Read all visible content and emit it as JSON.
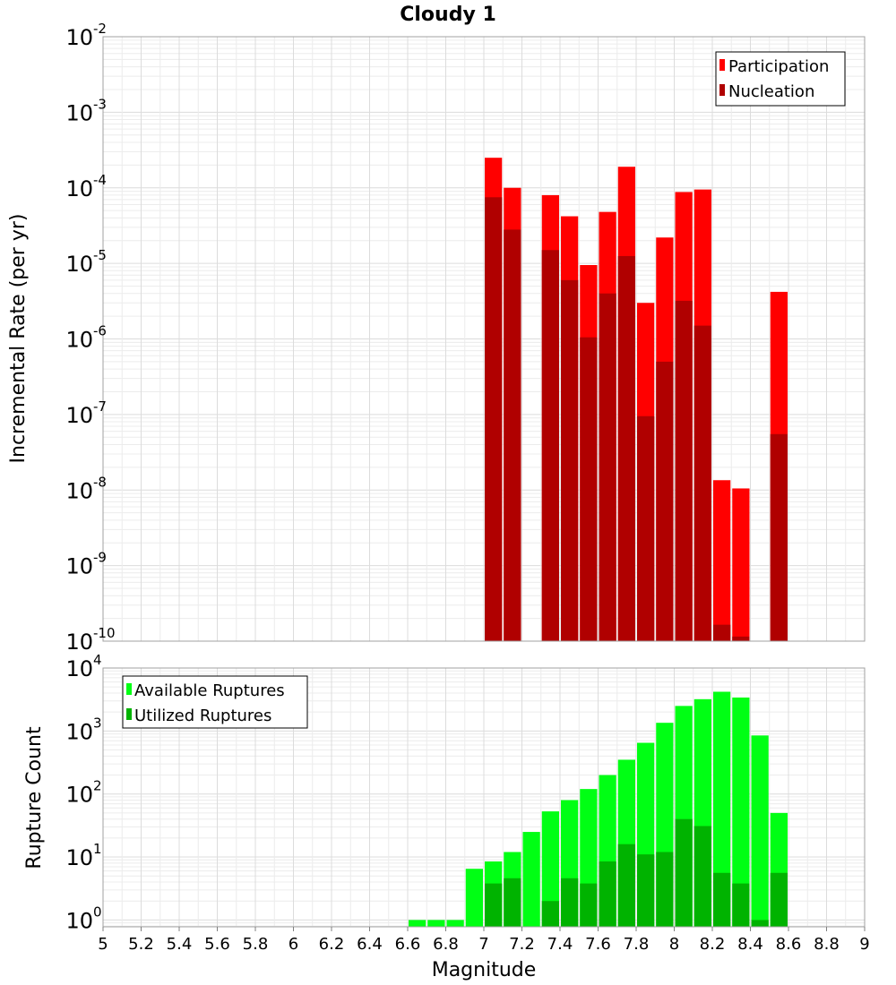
{
  "chart_data": [
    {
      "type": "bar",
      "title": "Cloudy 1",
      "xlabel": "",
      "ylabel": "Incremental Rate (per yr)",
      "yscale": "log",
      "ylim": [
        1e-10,
        0.01
      ],
      "xlim": [
        5,
        9
      ],
      "grid": true,
      "legend_position": "top-right",
      "x": [
        7.05,
        7.15,
        7.35,
        7.45,
        7.55,
        7.65,
        7.75,
        7.85,
        7.95,
        8.05,
        8.15,
        8.25,
        8.35,
        8.55
      ],
      "series": [
        {
          "name": "Participation",
          "color": "#ff0000",
          "values": [
            0.00025,
            0.0001,
            8e-05,
            4.2e-05,
            9.5e-06,
            4.8e-05,
            0.00019,
            3e-06,
            2.2e-05,
            8.8e-05,
            9.5e-05,
            1.35e-08,
            1.05e-08,
            4.2e-06
          ]
        },
        {
          "name": "Nucleation",
          "color": "#b00000",
          "values": [
            7.5e-05,
            2.8e-05,
            1.5e-05,
            6e-06,
            1.05e-06,
            4e-06,
            1.25e-05,
            9.5e-08,
            5e-07,
            3.2e-06,
            1.5e-06,
            1.65e-10,
            1.15e-10,
            5.5e-08
          ]
        }
      ],
      "ytick_labels": [
        {
          "base": "10",
          "exp": "-2"
        },
        {
          "base": "10",
          "exp": "-3"
        },
        {
          "base": "10",
          "exp": "-4"
        },
        {
          "base": "10",
          "exp": "-5"
        },
        {
          "base": "10",
          "exp": "-6"
        },
        {
          "base": "10",
          "exp": "-7"
        },
        {
          "base": "10",
          "exp": "-8"
        },
        {
          "base": "10",
          "exp": "-9"
        },
        {
          "base": "10",
          "exp": "-10"
        }
      ]
    },
    {
      "type": "bar",
      "title": "",
      "xlabel": "Magnitude",
      "ylabel": "Rupture Count",
      "yscale": "log",
      "ylim": [
        0.78,
        10000
      ],
      "xlim": [
        5,
        9
      ],
      "grid": true,
      "legend_position": "top-left",
      "x": [
        6.65,
        6.75,
        6.85,
        6.95,
        7.05,
        7.15,
        7.25,
        7.35,
        7.45,
        7.55,
        7.65,
        7.75,
        7.85,
        7.95,
        8.05,
        8.15,
        8.25,
        8.35,
        8.45,
        8.55
      ],
      "series": [
        {
          "name": "Available Ruptures",
          "color": "#00ff14",
          "values": [
            1,
            1,
            1,
            6.5,
            8.5,
            12,
            25,
            53,
            80,
            120,
            200,
            350,
            650,
            1350,
            2500,
            3200,
            4200,
            3400,
            850,
            50
          ]
        },
        {
          "name": "Utilized Ruptures",
          "color": "#00b300",
          "values": [
            null,
            null,
            null,
            null,
            3.8,
            4.6,
            null,
            2,
            4.6,
            3.8,
            8.5,
            16,
            11,
            12,
            40,
            31,
            5.6,
            3.8,
            1,
            5.6
          ]
        }
      ],
      "xticks": [
        "5",
        "5.2",
        "5.4",
        "5.6",
        "5.8",
        "6",
        "6.2",
        "6.4",
        "6.6",
        "6.8",
        "7",
        "7.2",
        "7.4",
        "7.6",
        "7.8",
        "8",
        "8.2",
        "8.4",
        "8.6",
        "8.8",
        "9"
      ],
      "ytick_labels": [
        {
          "base": "10",
          "exp": "4"
        },
        {
          "base": "10",
          "exp": "3"
        },
        {
          "base": "10",
          "exp": "2"
        },
        {
          "base": "10",
          "exp": "1"
        },
        {
          "base": "10",
          "exp": "0"
        }
      ]
    }
  ]
}
